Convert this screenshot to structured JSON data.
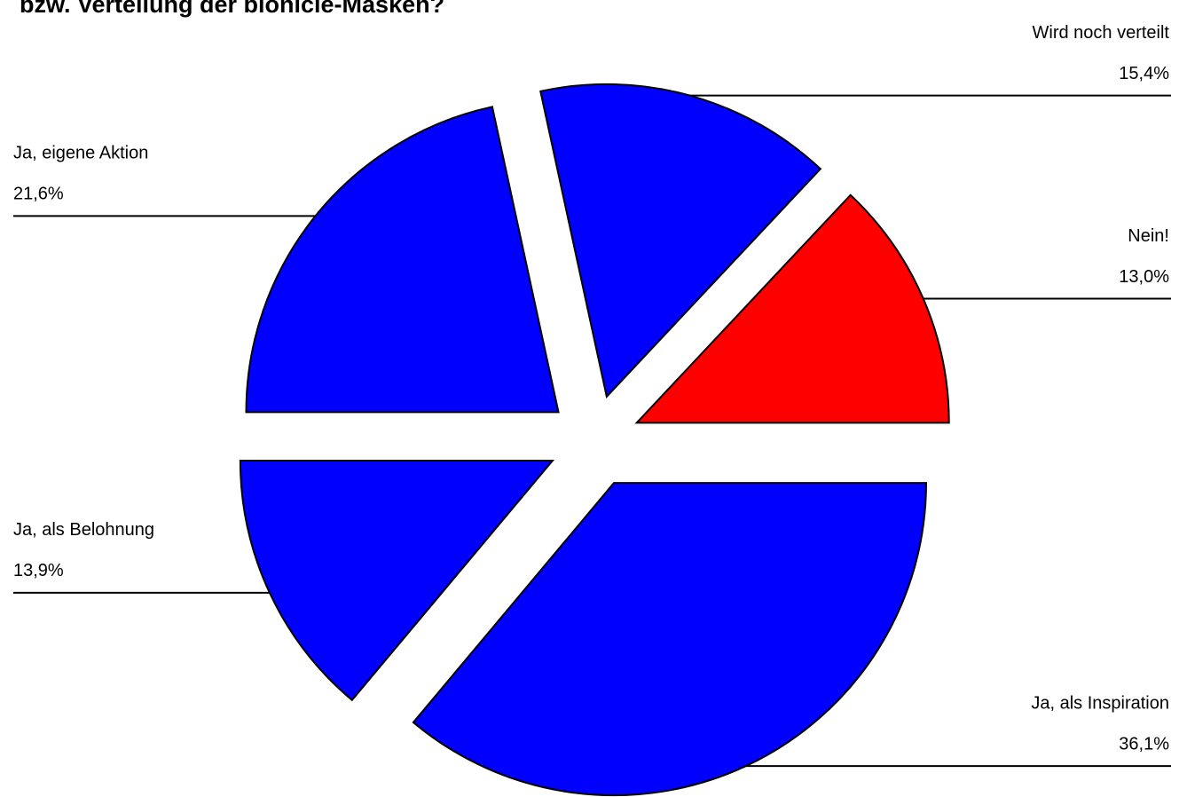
{
  "chart_data": {
    "type": "pie",
    "title": "bzw. Verteilung der bionicle-Masken?",
    "categories": [
      "Nein!",
      "Wird noch verteilt",
      "Ja, eigene Aktion",
      "Ja, als Belohnung",
      "Ja, als Inspiration"
    ],
    "values": [
      13.0,
      15.4,
      21.6,
      13.9,
      36.1
    ],
    "value_labels": [
      "13,0%",
      "15,4%",
      "21,6%",
      "13,9%",
      "36,1%"
    ],
    "colors": [
      "#ff0000",
      "#0000ff",
      "#0000ff",
      "#0000ff",
      "#0000ff"
    ]
  }
}
